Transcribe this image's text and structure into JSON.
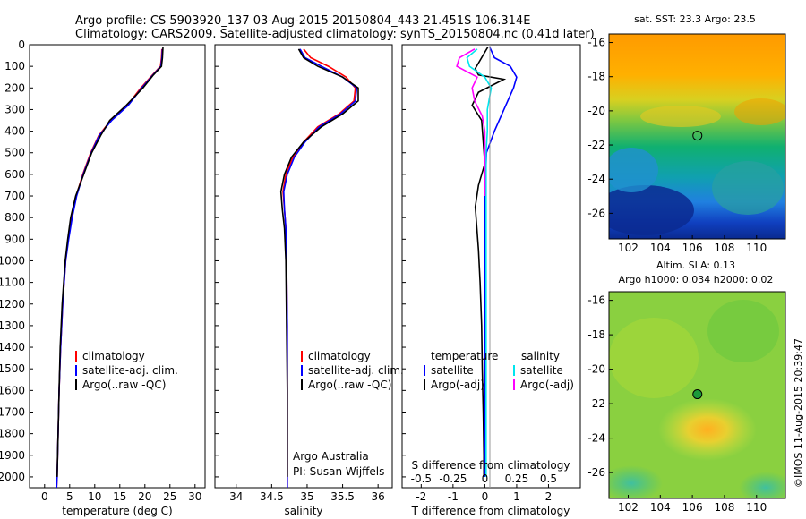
{
  "header": {
    "line1": "Argo profile: CS 5903920_137 03-Aug-2015 20150804_443 21.451S 106.314E",
    "line2": "Climatology: CARS2009. Satellite-adjusted climatology: synTS_20150804.nc (0.41d later)"
  },
  "colors": {
    "climatology": "#ff0000",
    "satellite": "#0000ff",
    "argo": "#000000",
    "salinity_sat": "#00e5ee",
    "salinity_argo": "#ff00ff"
  },
  "chart_data": [
    {
      "type": "line",
      "name": "temperature-profile",
      "xlabel": "temperature (deg C)",
      "xlim": [
        -3,
        32
      ],
      "ylim": [
        2050,
        0
      ],
      "xticks": [
        0,
        5,
        10,
        15,
        20,
        25,
        30
      ],
      "yticks": [
        0,
        100,
        200,
        300,
        400,
        500,
        600,
        700,
        800,
        900,
        1000,
        1100,
        1200,
        1300,
        1400,
        1500,
        1600,
        1700,
        1800,
        1900,
        2000
      ],
      "legend": [
        "climatology",
        "satellite-adj. clim.",
        "Argo(..raw -QC)"
      ],
      "series": [
        {
          "name": "climatology",
          "color": "#ff0000",
          "points": [
            [
              23.4,
              20
            ],
            [
              23.3,
              60
            ],
            [
              23.1,
              100
            ],
            [
              21.5,
              140
            ],
            [
              19.2,
              200
            ],
            [
              16.5,
              280
            ],
            [
              13.2,
              350
            ],
            [
              10.8,
              420
            ],
            [
              9.2,
              500
            ],
            [
              7.6,
              600
            ],
            [
              6.3,
              700
            ],
            [
              5.4,
              800
            ],
            [
              4.7,
              900
            ],
            [
              4.2,
              1000
            ],
            [
              3.6,
              1200
            ],
            [
              3.2,
              1400
            ],
            [
              2.9,
              1600
            ],
            [
              2.7,
              1800
            ],
            [
              2.5,
              2000
            ],
            [
              2.4,
              2050
            ]
          ]
        },
        {
          "name": "satellite-adj. clim.",
          "color": "#0000ff",
          "points": [
            [
              23.5,
              20
            ],
            [
              23.4,
              60
            ],
            [
              23.2,
              100
            ],
            [
              21.6,
              140
            ],
            [
              19.4,
              200
            ],
            [
              16.7,
              280
            ],
            [
              13.4,
              350
            ],
            [
              10.9,
              420
            ],
            [
              9.3,
              500
            ],
            [
              7.7,
              600
            ],
            [
              6.4,
              700
            ],
            [
              5.5,
              800
            ],
            [
              4.8,
              900
            ],
            [
              4.2,
              1000
            ],
            [
              3.6,
              1200
            ],
            [
              3.2,
              1400
            ],
            [
              2.9,
              1600
            ],
            [
              2.7,
              1800
            ],
            [
              2.5,
              2000
            ],
            [
              2.4,
              2050
            ]
          ]
        },
        {
          "name": "Argo(..raw -QC)",
          "color": "#000000",
          "points": [
            [
              23.6,
              10
            ],
            [
              23.5,
              60
            ],
            [
              23.3,
              100
            ],
            [
              21.7,
              140
            ],
            [
              19.6,
              200
            ],
            [
              16.3,
              280
            ],
            [
              13.0,
              350
            ],
            [
              11.2,
              420
            ],
            [
              9.4,
              500
            ],
            [
              7.8,
              600
            ],
            [
              6.2,
              700
            ],
            [
              5.2,
              800
            ],
            [
              4.6,
              900
            ],
            [
              4.1,
              1000
            ],
            [
              3.5,
              1200
            ],
            [
              3.1,
              1400
            ],
            [
              2.9,
              1600
            ],
            [
              2.7,
              1800
            ],
            [
              2.5,
              2000
            ]
          ]
        }
      ]
    },
    {
      "type": "line",
      "name": "salinity-profile",
      "xlabel": "salinity",
      "xlim": [
        33.7,
        36.2
      ],
      "ylim": [
        2050,
        0
      ],
      "xticks": [
        34,
        34.5,
        35,
        35.5,
        36
      ],
      "legend": [
        "climatology",
        "satellite-adj. clim.",
        "Argo(..raw -QC)"
      ],
      "annotations": [
        "Argo Australia",
        "PI: Susan Wijffels"
      ],
      "series": [
        {
          "name": "climatology",
          "color": "#ff0000",
          "points": [
            [
              34.95,
              20
            ],
            [
              35.05,
              60
            ],
            [
              35.3,
              100
            ],
            [
              35.55,
              150
            ],
            [
              35.68,
              200
            ],
            [
              35.66,
              260
            ],
            [
              35.45,
              320
            ],
            [
              35.15,
              380
            ],
            [
              34.95,
              450
            ],
            [
              34.8,
              520
            ],
            [
              34.7,
              600
            ],
            [
              34.66,
              680
            ],
            [
              34.68,
              760
            ],
            [
              34.7,
              850
            ],
            [
              34.71,
              1000
            ],
            [
              34.72,
              1300
            ],
            [
              34.72,
              1600
            ],
            [
              34.72,
              2050
            ]
          ]
        },
        {
          "name": "satellite-adj. clim.",
          "color": "#0000ff",
          "points": [
            [
              34.9,
              20
            ],
            [
              34.97,
              60
            ],
            [
              35.2,
              100
            ],
            [
              35.5,
              150
            ],
            [
              35.7,
              200
            ],
            [
              35.68,
              260
            ],
            [
              35.47,
              320
            ],
            [
              35.17,
              380
            ],
            [
              34.97,
              450
            ],
            [
              34.82,
              520
            ],
            [
              34.72,
              600
            ],
            [
              34.67,
              680
            ],
            [
              34.68,
              760
            ],
            [
              34.7,
              850
            ],
            [
              34.71,
              1000
            ],
            [
              34.72,
              1300
            ],
            [
              34.72,
              1600
            ],
            [
              34.72,
              2050
            ]
          ]
        },
        {
          "name": "Argo(..raw -QC)",
          "color": "#000000",
          "points": [
            [
              34.88,
              20
            ],
            [
              34.95,
              60
            ],
            [
              35.15,
              100
            ],
            [
              35.5,
              150
            ],
            [
              35.72,
              200
            ],
            [
              35.72,
              260
            ],
            [
              35.5,
              320
            ],
            [
              35.2,
              380
            ],
            [
              34.95,
              450
            ],
            [
              34.78,
              520
            ],
            [
              34.68,
              600
            ],
            [
              34.63,
              680
            ],
            [
              34.65,
              760
            ],
            [
              34.68,
              850
            ],
            [
              34.7,
              1000
            ],
            [
              34.71,
              1300
            ],
            [
              34.72,
              1600
            ],
            [
              34.72,
              2000
            ]
          ]
        }
      ]
    },
    {
      "type": "line",
      "name": "difference-profile",
      "xlabel": "T difference from climatology",
      "x2label": "S difference from climatology",
      "xlim": [
        -2.6,
        3.0
      ],
      "ylim": [
        2050,
        0
      ],
      "xticks": [
        -2,
        -1,
        0,
        1,
        2
      ],
      "x2ticks": [
        "-0.5",
        "-0.25",
        "0",
        "0.25",
        "0.5"
      ],
      "legend_temperature": [
        "temperature",
        "satellite",
        "Argo(-adj)"
      ],
      "legend_salinity": [
        "salinity",
        "satellite",
        "Argo(-adj)"
      ],
      "series": [
        {
          "name": "T satellite",
          "color": "#0000ff",
          "points": [
            [
              0.15,
              10
            ],
            [
              0.3,
              60
            ],
            [
              0.8,
              100
            ],
            [
              1.0,
              150
            ],
            [
              0.9,
              200
            ],
            [
              0.6,
              300
            ],
            [
              0.3,
              400
            ],
            [
              0.05,
              500
            ],
            [
              0.0,
              700
            ],
            [
              0.0,
              1000
            ],
            [
              0.0,
              1500
            ],
            [
              0.0,
              2000
            ]
          ]
        },
        {
          "name": "T Argo(-adj)",
          "color": "#000000",
          "points": [
            [
              0.1,
              10
            ],
            [
              -0.3,
              110
            ],
            [
              -0.2,
              140
            ],
            [
              0.6,
              160
            ],
            [
              -0.2,
              220
            ],
            [
              -0.4,
              280
            ],
            [
              -0.1,
              350
            ],
            [
              -0.05,
              450
            ],
            [
              0.0,
              550
            ],
            [
              -0.2,
              650
            ],
            [
              -0.3,
              750
            ],
            [
              -0.25,
              850
            ],
            [
              -0.2,
              950
            ],
            [
              -0.15,
              1100
            ],
            [
              -0.1,
              1300
            ],
            [
              -0.08,
              1500
            ],
            [
              -0.05,
              1700
            ],
            [
              -0.03,
              1900
            ],
            [
              -0.03,
              2000
            ]
          ]
        },
        {
          "name": "S satellite",
          "color": "#00e5ee",
          "points": [
            [
              -0.06,
              20
            ],
            [
              -0.14,
              60
            ],
            [
              -0.12,
              100
            ],
            [
              0.0,
              150
            ],
            [
              0.05,
              200
            ],
            [
              0.02,
              300
            ],
            [
              0.02,
              400
            ],
            [
              0.01,
              500
            ],
            [
              0.01,
              700
            ],
            [
              0.01,
              1000
            ],
            [
              0.01,
              1500
            ],
            [
              0.01,
              2000
            ]
          ]
        },
        {
          "name": "S Argo(-adj)",
          "color": "#ff00ff",
          "points": [
            [
              -0.08,
              20
            ],
            [
              -0.2,
              60
            ],
            [
              -0.22,
              100
            ],
            [
              -0.06,
              150
            ],
            [
              -0.1,
              200
            ],
            [
              -0.08,
              260
            ],
            [
              -0.02,
              330
            ],
            [
              0.0,
              400
            ],
            [
              0.0,
              550
            ],
            [
              0.0,
              700
            ]
          ]
        }
      ]
    },
    {
      "type": "heatmap",
      "name": "sst-map",
      "title": "sat. SST: 23.3 Argo: 23.5",
      "xlim": [
        100.8,
        111.8
      ],
      "ylim": [
        -27.5,
        -15.5
      ],
      "xticks": [
        102,
        104,
        106,
        108,
        110
      ],
      "yticks": [
        -16,
        -18,
        -20,
        -22,
        -24,
        -26
      ],
      "argo_position": [
        106.314,
        -21.451
      ]
    },
    {
      "type": "heatmap",
      "name": "sla-map",
      "title_line1": "Altim. SLA: 0.13",
      "title_line2": "Argo h1000: 0.034 h2000: 0.02",
      "xlim": [
        100.8,
        111.8
      ],
      "ylim": [
        -27.5,
        -15.5
      ],
      "xticks": [
        102,
        104,
        106,
        108,
        110
      ],
      "yticks": [
        -16,
        -18,
        -20,
        -22,
        -24,
        -26
      ],
      "argo_position": [
        106.314,
        -21.451
      ]
    }
  ],
  "credit": "©IMOS 11-Aug-2015 20:39:47"
}
